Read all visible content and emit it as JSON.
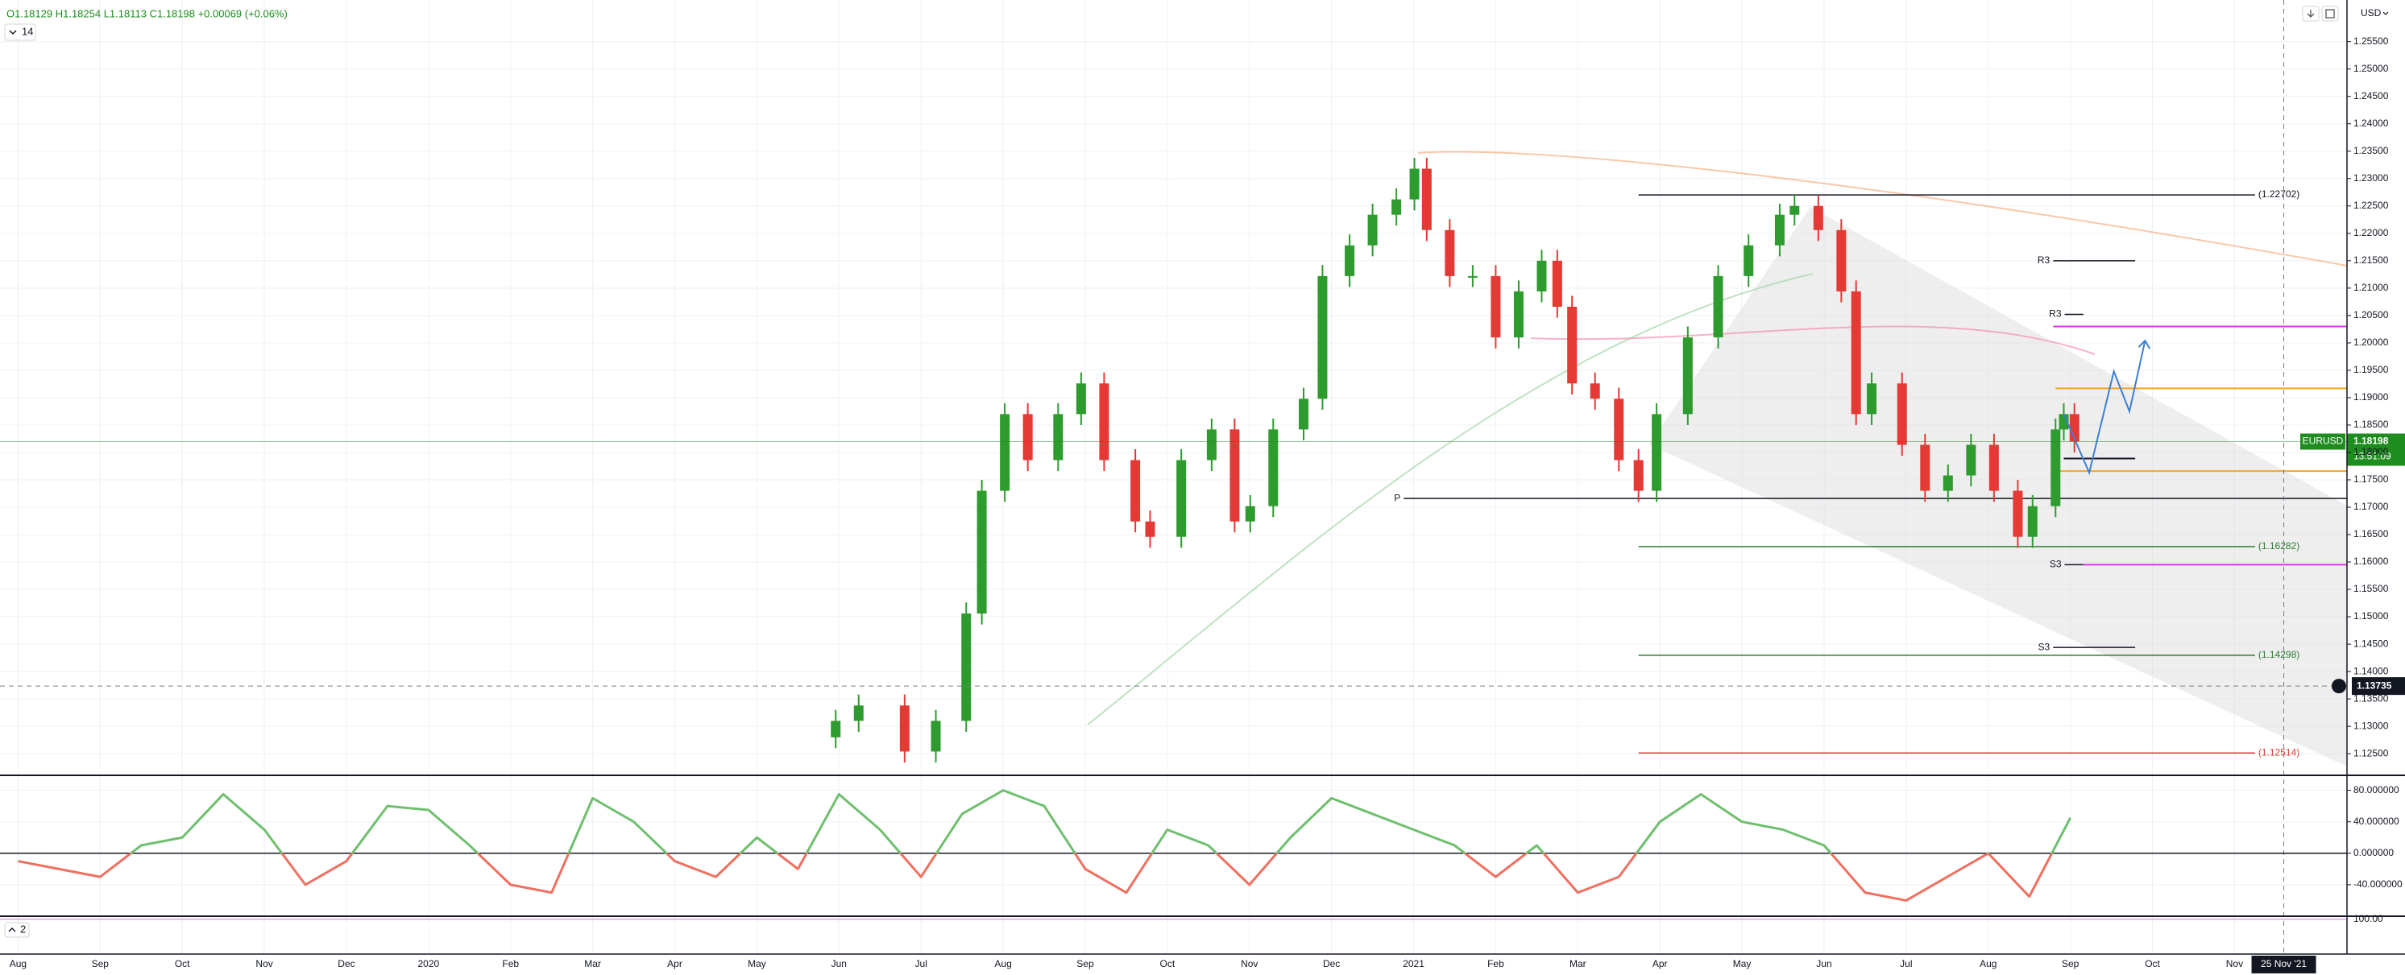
{
  "chart_data": {
    "type": "candlestick",
    "subtitle": "O1.18129 H1.18254 L1.18113 C1.18198 +0.00069 (+0.06%)",
    "indicator_label": "14",
    "currency": "USD",
    "up_color": "#2e9b2e",
    "down_color": "#e53935",
    "grid": true,
    "xlim": [
      -0.22,
      28.37
    ],
    "ylim": [
      1.1212,
      1.2626
    ],
    "xticks": [
      {
        "value": 0,
        "label": "Aug"
      },
      {
        "value": 1,
        "label": "Sep"
      },
      {
        "value": 2,
        "label": "Oct"
      },
      {
        "value": 3,
        "label": "Nov"
      },
      {
        "value": 4,
        "label": "Dec"
      },
      {
        "value": 5,
        "label": "2020"
      },
      {
        "value": 6,
        "label": "Feb"
      },
      {
        "value": 7,
        "label": "Mar"
      },
      {
        "value": 8,
        "label": "Apr"
      },
      {
        "value": 9,
        "label": "May"
      },
      {
        "value": 10,
        "label": "Jun"
      },
      {
        "value": 11,
        "label": "Jul"
      },
      {
        "value": 12,
        "label": "Aug"
      },
      {
        "value": 13,
        "label": "Sep"
      },
      {
        "value": 14,
        "label": "Oct"
      },
      {
        "value": 15,
        "label": "Nov"
      },
      {
        "value": 16,
        "label": "Dec"
      },
      {
        "value": 17,
        "label": "2021"
      },
      {
        "value": 18,
        "label": "Feb"
      },
      {
        "value": 19,
        "label": "Mar"
      },
      {
        "value": 20,
        "label": "Apr"
      },
      {
        "value": 21,
        "label": "May"
      },
      {
        "value": 22,
        "label": "Jun"
      },
      {
        "value": 23,
        "label": "Jul"
      },
      {
        "value": 24,
        "label": "Aug"
      },
      {
        "value": 25,
        "label": "Sep"
      },
      {
        "value": 26,
        "label": "Oct"
      },
      {
        "value": 27,
        "label": "Nov"
      }
    ],
    "yticks": [
      {
        "value": 1.125,
        "label": "1.12500"
      },
      {
        "value": 1.13,
        "label": "1.13000"
      },
      {
        "value": 1.135,
        "label": "1.13500"
      },
      {
        "value": 1.14,
        "label": "1.14000"
      },
      {
        "value": 1.145,
        "label": "1.14500"
      },
      {
        "value": 1.15,
        "label": "1.15000"
      },
      {
        "value": 1.155,
        "label": "1.15500"
      },
      {
        "value": 1.16,
        "label": "1.16000"
      },
      {
        "value": 1.165,
        "label": "1.16500"
      },
      {
        "value": 1.17,
        "label": "1.17000"
      },
      {
        "value": 1.175,
        "label": "1.17500"
      },
      {
        "value": 1.18,
        "label": "1.18000"
      },
      {
        "value": 1.185,
        "label": "1.18500"
      },
      {
        "value": 1.19,
        "label": "1.19000"
      },
      {
        "value": 1.195,
        "label": "1.19500"
      },
      {
        "value": 1.2,
        "label": "1.20000"
      },
      {
        "value": 1.205,
        "label": "1.20500"
      },
      {
        "value": 1.21,
        "label": "1.21000"
      },
      {
        "value": 1.215,
        "label": "1.21500"
      },
      {
        "value": 1.22,
        "label": "1.22000"
      },
      {
        "value": 1.225,
        "label": "1.22500"
      },
      {
        "value": 1.23,
        "label": "1.23000"
      },
      {
        "value": 1.235,
        "label": "1.23500"
      },
      {
        "value": 1.24,
        "label": "1.24000"
      },
      {
        "value": 1.245,
        "label": "1.24500"
      },
      {
        "value": 1.25,
        "label": "1.25000"
      },
      {
        "value": 1.255,
        "label": "1.25500"
      }
    ],
    "candles": {
      "x": [
        9.96,
        10.24,
        10.8,
        11.18,
        11.55,
        11.74,
        12.02,
        12.3,
        12.67,
        12.95,
        13.23,
        13.61,
        13.79,
        14.17,
        14.54,
        14.82,
        15.01,
        15.29,
        15.66,
        15.89,
        16.22,
        16.5,
        16.79,
        17.01,
        17.16,
        17.44,
        17.72,
        18.0,
        18.28,
        18.56,
        18.75,
        18.93,
        19.21,
        19.5,
        19.74,
        19.96,
        20.34,
        20.71,
        21.08,
        21.46,
        21.64,
        21.93,
        22.21,
        22.39,
        22.58,
        22.95,
        23.23,
        23.51,
        23.79,
        24.07,
        24.36,
        24.54,
        24.82,
        24.92,
        25.05
      ],
      "open": [
        1.128,
        1.131,
        1.1338,
        1.1254,
        1.131,
        1.1506,
        1.173,
        1.187,
        1.1786,
        1.187,
        1.1926,
        1.1786,
        1.1674,
        1.1646,
        1.1786,
        1.1842,
        1.1674,
        1.1702,
        1.1842,
        1.1898,
        1.2122,
        1.2178,
        1.2234,
        1.2262,
        1.2318,
        1.2206,
        1.2122,
        1.2122,
        1.201,
        1.2094,
        1.215,
        1.2066,
        1.1926,
        1.1898,
        1.1786,
        1.173,
        1.187,
        1.201,
        1.2122,
        1.2178,
        1.2234,
        1.225,
        1.2206,
        1.2094,
        1.187,
        1.1926,
        1.1814,
        1.173,
        1.1758,
        1.1814,
        1.173,
        1.1646,
        1.1702,
        1.1842,
        1.187
      ],
      "high": [
        1.133,
        1.1358,
        1.1358,
        1.133,
        1.1526,
        1.175,
        1.189,
        1.189,
        1.189,
        1.1946,
        1.1946,
        1.1806,
        1.1694,
        1.1806,
        1.1862,
        1.1862,
        1.1722,
        1.1862,
        1.1918,
        1.2142,
        1.2198,
        1.2254,
        1.2282,
        1.2338,
        1.2338,
        1.2226,
        1.2142,
        1.2142,
        1.2114,
        1.217,
        1.217,
        1.2086,
        1.1946,
        1.1918,
        1.1806,
        1.189,
        1.203,
        1.2142,
        1.2198,
        1.2254,
        1.227,
        1.227,
        1.2226,
        1.2114,
        1.1946,
        1.1946,
        1.1834,
        1.1778,
        1.1834,
        1.1834,
        1.175,
        1.1722,
        1.1862,
        1.189,
        1.189
      ],
      "low": [
        1.126,
        1.129,
        1.1234,
        1.1234,
        1.129,
        1.1486,
        1.171,
        1.1766,
        1.1766,
        1.185,
        1.1766,
        1.1654,
        1.1626,
        1.1626,
        1.1766,
        1.1654,
        1.1654,
        1.1682,
        1.1822,
        1.1878,
        1.2102,
        1.2158,
        1.2214,
        1.2242,
        1.2186,
        1.2102,
        1.2102,
        1.199,
        1.199,
        1.2074,
        1.2046,
        1.1906,
        1.1878,
        1.1766,
        1.171,
        1.171,
        1.185,
        1.199,
        1.2102,
        1.2158,
        1.2214,
        1.2186,
        1.2074,
        1.185,
        1.185,
        1.1794,
        1.171,
        1.171,
        1.1738,
        1.171,
        1.1626,
        1.1626,
        1.1682,
        1.1822,
        1.18
      ],
      "close": [
        1.131,
        1.1338,
        1.1254,
        1.131,
        1.1506,
        1.173,
        1.187,
        1.1786,
        1.187,
        1.1926,
        1.1786,
        1.1674,
        1.1646,
        1.1786,
        1.1842,
        1.1674,
        1.1702,
        1.1842,
        1.1898,
        1.2122,
        1.2178,
        1.2234,
        1.2262,
        1.2318,
        1.2206,
        1.2122,
        1.2122,
        1.201,
        1.2094,
        1.215,
        1.2066,
        1.1926,
        1.1898,
        1.1786,
        1.173,
        1.187,
        1.201,
        1.2122,
        1.2178,
        1.2234,
        1.225,
        1.2206,
        1.2094,
        1.187,
        1.1926,
        1.1814,
        1.173,
        1.1758,
        1.1814,
        1.173,
        1.1646,
        1.1702,
        1.1842,
        1.187,
        1.182
      ]
    },
    "levels": [
      {
        "value": 1.22702,
        "label": "(1.22702)",
        "color": "#131722",
        "from": 19.74,
        "to": 27.25
      },
      {
        "value": 1.16282,
        "label": "(1.16282)",
        "color": "#2e7d32",
        "from": 19.74,
        "to": 27.25
      },
      {
        "value": 1.14298,
        "label": "(1.14298)",
        "color": "#2e7d32",
        "from": 19.74,
        "to": 27.25
      },
      {
        "value": 1.12514,
        "label": "(1.12514)",
        "color": "#e53935",
        "from": 19.74,
        "to": 27.25
      }
    ],
    "pivots": [
      {
        "label": "R3",
        "value": 1.215,
        "from": 24.79,
        "to": 25.79
      },
      {
        "label": "R3",
        "value": 1.2052,
        "from": 24.93,
        "to": 25.16
      },
      {
        "label": "P",
        "value": 1.1716,
        "from": 16.88,
        "to": 28.37
      },
      {
        "label": "S3",
        "value": 1.1595,
        "from": 24.93,
        "to": 25.16
      },
      {
        "label": "S3",
        "value": 1.1444,
        "from": 24.79,
        "to": 25.79
      }
    ],
    "lines": [
      {
        "value": 1.203,
        "color": "#d63be0",
        "from": 24.79,
        "to": 28.37
      },
      {
        "value": 1.1595,
        "color": "#d63be0",
        "from": 25.16,
        "to": 28.37
      },
      {
        "value": 1.1917,
        "color": "#f5a623",
        "from": 24.82,
        "to": 28.37
      },
      {
        "value": 1.1766,
        "color": "#f5a623",
        "from": 24.82,
        "to": 28.37
      },
      {
        "value": 1.1789,
        "color": "#131722",
        "from": 24.92,
        "to": 25.79
      }
    ],
    "projection": {
      "color": "#3d7fd1",
      "x": [
        24.92,
        25.23,
        25.53,
        25.72,
        25.91
      ],
      "values": [
        1.187,
        1.1763,
        1.1948,
        1.1875,
        1.2004
      ]
    },
    "last_price": {
      "label": "EURUSD",
      "value": 1.18198,
      "countdown": "13:51:09",
      "color": "#1e8c1e"
    },
    "crosshair": {
      "value": 1.13735,
      "x": 27.6,
      "date_label": "25 Nov '21"
    },
    "oscillator": {
      "ylim": [
        -79,
        97
      ],
      "yticks": [
        {
          "value": 80,
          "label": "80.000000"
        },
        {
          "value": 40,
          "label": "40.000000"
        },
        {
          "value": 0,
          "label": "0.000000"
        },
        {
          "value": -40,
          "label": "-40.000000"
        }
      ],
      "up_color": "#6fbf6f",
      "down_color": "#ef7060",
      "x": [
        0,
        0.5,
        1,
        1.5,
        2,
        2.5,
        3,
        3.5,
        4,
        4.5,
        5,
        5.5,
        6,
        6.5,
        7,
        7.5,
        8,
        8.5,
        9,
        9.5,
        10,
        10.5,
        11,
        11.5,
        12,
        12.5,
        13,
        13.5,
        14,
        14.5,
        15,
        15.5,
        16,
        16.5,
        17,
        17.5,
        18,
        18.5,
        19,
        19.5,
        20,
        20.5,
        21,
        21.5,
        22,
        22.5,
        23,
        23.5,
        24,
        24.5,
        25
      ],
      "values": [
        -10,
        -20,
        -30,
        10,
        20,
        75,
        30,
        -40,
        -10,
        60,
        55,
        10,
        -40,
        -50,
        70,
        40,
        -10,
        -30,
        20,
        -20,
        75,
        30,
        -30,
        50,
        80,
        60,
        -20,
        -50,
        30,
        10,
        -40,
        20,
        70,
        50,
        30,
        10,
        -30,
        10,
        -50,
        -30,
        40,
        75,
        40,
        30,
        10,
        -50,
        -60,
        -30,
        0,
        -55,
        45
      ]
    },
    "lower_pane": {
      "label": "2",
      "ylim": [
        0,
        104
      ],
      "yticks": [
        {
          "value": 100,
          "label": "100.00"
        }
      ]
    }
  }
}
